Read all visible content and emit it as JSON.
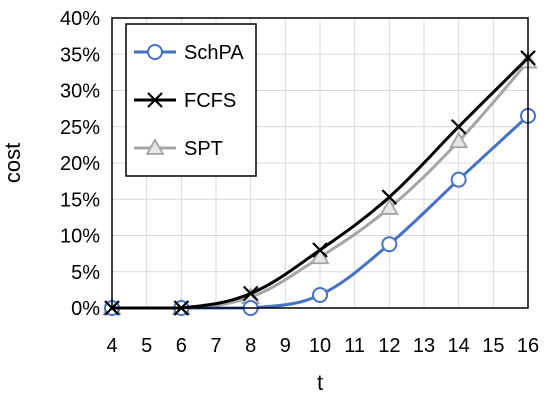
{
  "chart_data": {
    "type": "line",
    "xlabel": "t",
    "ylabel": "cost",
    "x": [
      4,
      6,
      8,
      10,
      12,
      14,
      16
    ],
    "xlim": [
      4,
      16
    ],
    "ylim": [
      0,
      40
    ],
    "xticks": [
      4,
      5,
      6,
      7,
      8,
      9,
      10,
      11,
      12,
      13,
      14,
      15,
      16
    ],
    "yticks": [
      0,
      5,
      10,
      15,
      20,
      25,
      30,
      35,
      40
    ],
    "ytick_labels": [
      "0%",
      "5%",
      "10%",
      "15%",
      "20%",
      "25%",
      "30%",
      "35%",
      "40%"
    ],
    "grid": true,
    "legend_position": "top-left",
    "series": [
      {
        "name": "SchPA",
        "values": [
          0,
          0,
          0,
          1.8,
          8.8,
          17.7,
          26.5
        ],
        "color": "#4472c4",
        "marker": "circle"
      },
      {
        "name": "FCFS",
        "values": [
          0,
          0,
          2,
          8,
          15.3,
          25,
          34.5
        ],
        "color": "#000000",
        "marker": "x"
      },
      {
        "name": "SPT",
        "values": [
          0,
          0,
          1.5,
          7,
          13.8,
          23,
          34
        ],
        "color": "#a5a5a5",
        "marker": "triangle"
      }
    ]
  }
}
